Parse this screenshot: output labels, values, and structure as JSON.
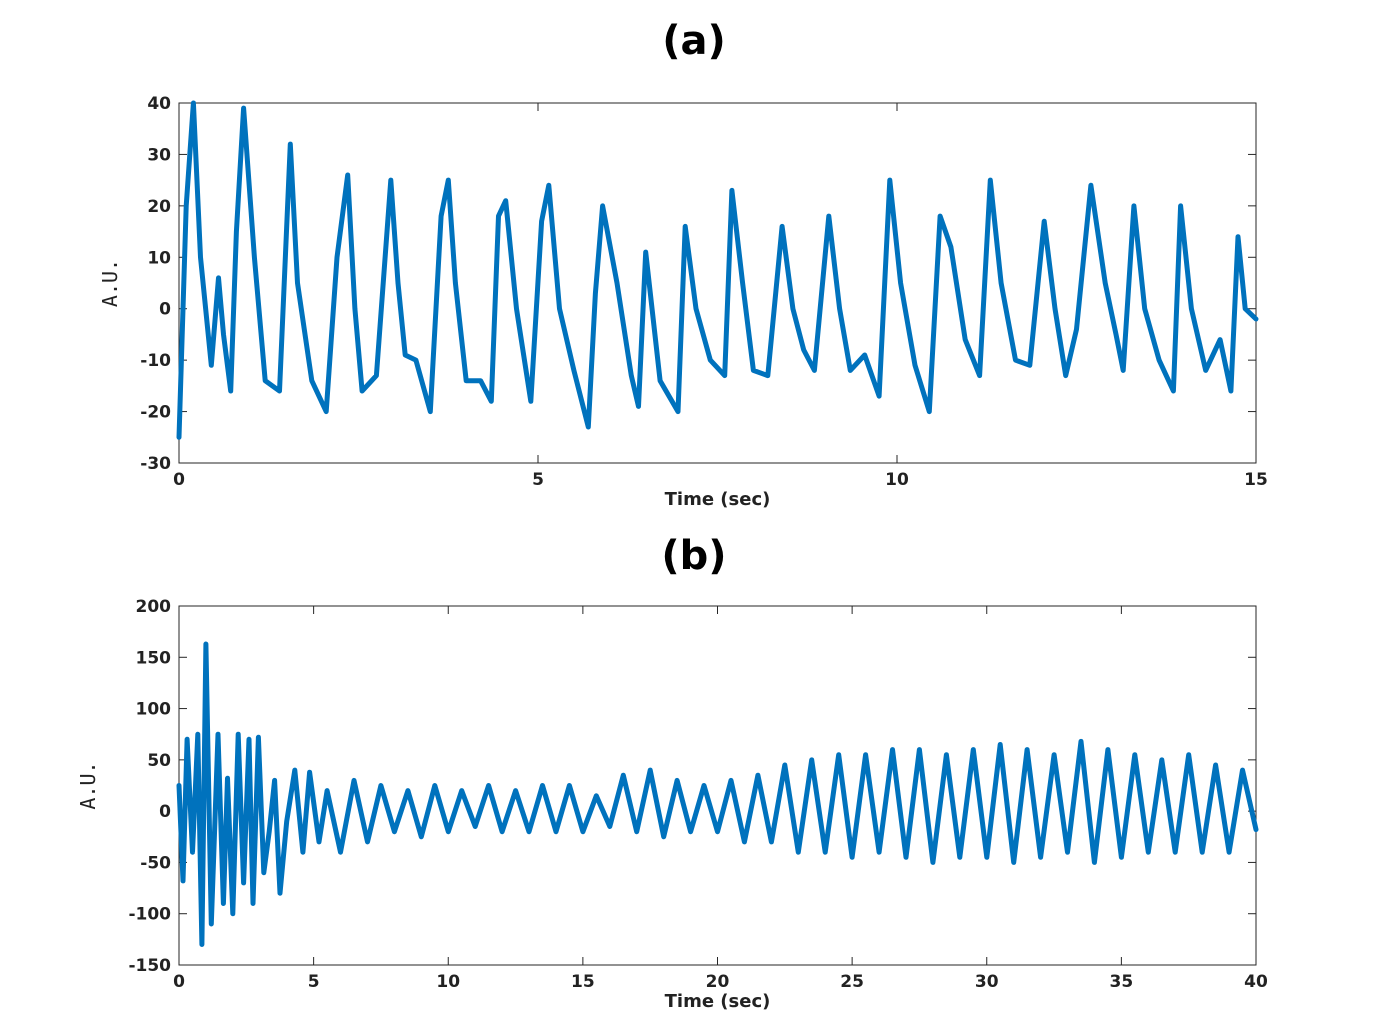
{
  "chart_data": [
    {
      "type": "line",
      "title": "(a)",
      "xlabel": "Time (sec)",
      "ylabel": "A.U.",
      "xlim": [
        0,
        15
      ],
      "ylim": [
        -30,
        40
      ],
      "xticks": [
        0,
        5,
        10,
        15
      ],
      "yticks": [
        -30,
        -20,
        -10,
        0,
        10,
        20,
        30,
        40
      ],
      "grid": false,
      "color": "#0072BD",
      "series": [
        {
          "x": [
            0.0,
            0.1,
            0.2,
            0.3,
            0.45,
            0.55,
            0.62,
            0.72,
            0.8,
            0.9,
            1.05,
            1.2,
            1.4,
            1.55,
            1.65,
            1.85,
            2.05,
            2.2,
            2.35,
            2.45,
            2.55,
            2.75,
            2.95,
            3.05,
            3.15,
            3.3,
            3.5,
            3.65,
            3.75,
            3.85,
            4.0,
            4.2,
            4.35,
            4.45,
            4.55,
            4.7,
            4.9,
            5.05,
            5.15,
            5.3,
            5.5,
            5.7,
            5.8,
            5.9,
            6.1,
            6.3,
            6.4,
            6.5,
            6.7,
            6.95,
            7.05,
            7.2,
            7.4,
            7.6,
            7.7,
            7.85,
            8.0,
            8.2,
            8.4,
            8.55,
            8.7,
            8.85,
            9.05,
            9.2,
            9.35,
            9.55,
            9.75,
            9.9,
            10.05,
            10.25,
            10.45,
            10.6,
            10.75,
            10.95,
            11.15,
            11.3,
            11.45,
            11.65,
            11.85,
            12.05,
            12.2,
            12.35,
            12.5,
            12.7,
            12.9,
            13.05,
            13.15,
            13.3,
            13.45,
            13.65,
            13.85,
            13.95,
            14.1,
            14.3,
            14.5,
            14.65,
            14.75,
            14.85,
            15.0
          ],
          "y": [
            -25,
            20,
            40,
            10,
            -11,
            6,
            -5,
            -16,
            15,
            39,
            10,
            -14,
            -16,
            32,
            5,
            -14,
            -20,
            10,
            26,
            0,
            -16,
            -13,
            25,
            5,
            -9,
            -10,
            -20,
            18,
            25,
            5,
            -14,
            -14,
            -18,
            18,
            21,
            0,
            -18,
            17,
            24,
            0,
            -12,
            -23,
            3,
            20,
            5,
            -13,
            -19,
            11,
            -14,
            -20,
            16,
            0,
            -10,
            -13,
            23,
            5,
            -12,
            -13,
            16,
            0,
            -8,
            -12,
            18,
            0,
            -12,
            -9,
            -17,
            25,
            5,
            -11,
            -20,
            18,
            12,
            -6,
            -13,
            25,
            5,
            -10,
            -11,
            17,
            0,
            -13,
            -4,
            24,
            5,
            -5,
            -12,
            20,
            0,
            -10,
            -16,
            20,
            0,
            -12,
            -6,
            -16,
            14,
            0,
            -2
          ]
        }
      ]
    },
    {
      "type": "line",
      "title": "(b)",
      "xlabel": "Time (sec)",
      "ylabel": "A.U.",
      "xlim": [
        0,
        40
      ],
      "ylim": [
        -150,
        200
      ],
      "xticks": [
        0,
        5,
        10,
        15,
        20,
        25,
        30,
        35,
        40
      ],
      "yticks": [
        -150,
        -100,
        -50,
        0,
        50,
        100,
        150,
        200
      ],
      "grid": false,
      "color": "#0072BD",
      "series": [
        {
          "x": [
            0.0,
            0.15,
            0.3,
            0.5,
            0.7,
            0.85,
            1.0,
            1.2,
            1.45,
            1.65,
            1.8,
            2.0,
            2.2,
            2.4,
            2.6,
            2.75,
            2.95,
            3.15,
            3.35,
            3.55,
            3.75,
            4.0,
            4.3,
            4.6,
            4.85,
            5.2,
            5.5,
            6.0,
            6.5,
            7.0,
            7.5,
            8.0,
            8.5,
            9.0,
            9.5,
            10.0,
            10.5,
            11.0,
            11.5,
            12.0,
            12.5,
            13.0,
            13.5,
            14.0,
            14.5,
            15.0,
            15.5,
            16.0,
            16.5,
            17.0,
            17.5,
            18.0,
            18.5,
            19.0,
            19.5,
            20.0,
            20.5,
            21.0,
            21.5,
            22.0,
            22.5,
            23.0,
            23.5,
            24.0,
            24.5,
            25.0,
            25.5,
            26.0,
            26.5,
            27.0,
            27.5,
            28.0,
            28.5,
            29.0,
            29.5,
            30.0,
            30.5,
            31.0,
            31.5,
            32.0,
            32.5,
            33.0,
            33.5,
            34.0,
            34.5,
            35.0,
            35.5,
            36.0,
            36.5,
            37.0,
            37.5,
            38.0,
            38.5,
            39.0,
            39.5,
            40.0
          ],
          "y": [
            25,
            -68,
            70,
            -40,
            75,
            -130,
            163,
            -110,
            75,
            -90,
            32,
            -100,
            75,
            -70,
            70,
            -90,
            72,
            -60,
            -20,
            30,
            -80,
            -10,
            40,
            -40,
            38,
            -30,
            20,
            -40,
            30,
            -30,
            25,
            -20,
            20,
            -25,
            25,
            -20,
            20,
            -15,
            25,
            -20,
            20,
            -20,
            25,
            -20,
            25,
            -20,
            15,
            -15,
            35,
            -20,
            40,
            -25,
            30,
            -20,
            25,
            -20,
            30,
            -30,
            35,
            -30,
            45,
            -40,
            50,
            -40,
            55,
            -45,
            55,
            -40,
            60,
            -45,
            60,
            -50,
            55,
            -45,
            60,
            -45,
            65,
            -50,
            60,
            -45,
            55,
            -40,
            68,
            -50,
            60,
            -45,
            55,
            -40,
            50,
            -40,
            55,
            -40,
            45,
            -40,
            40,
            -18
          ]
        }
      ]
    }
  ]
}
